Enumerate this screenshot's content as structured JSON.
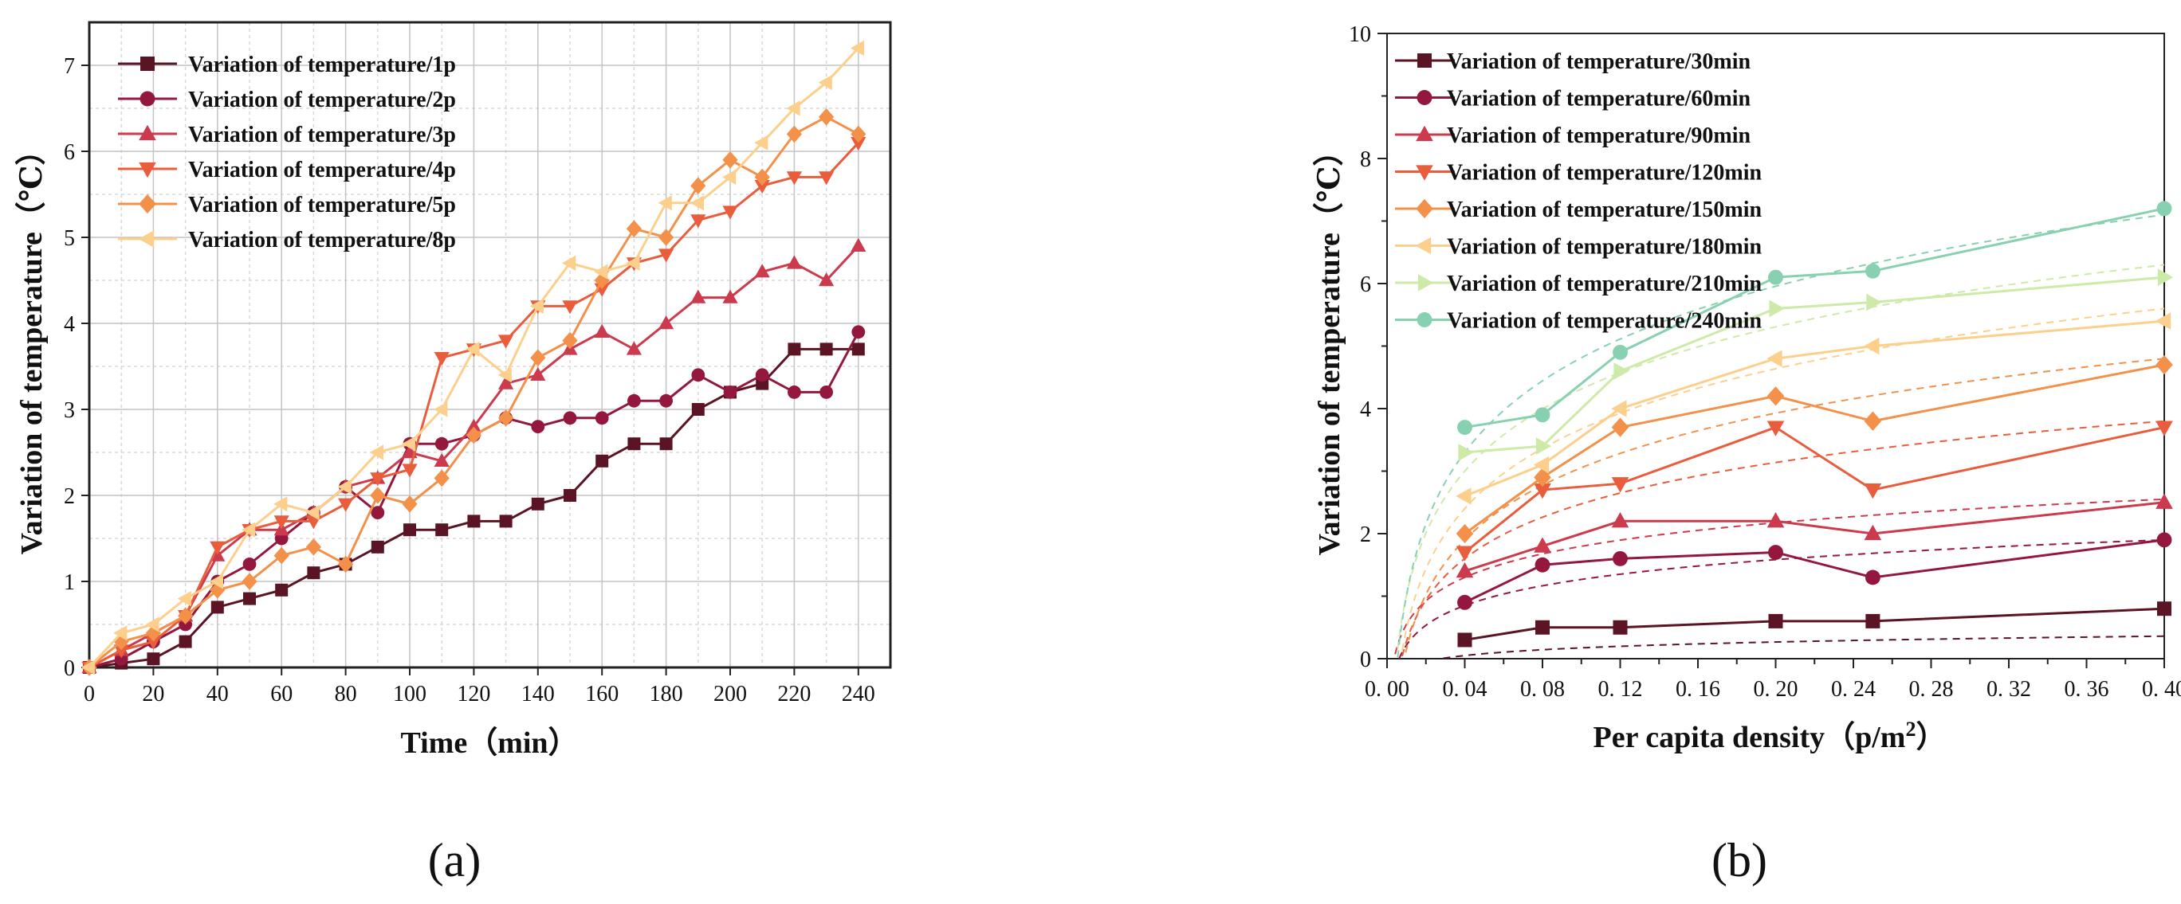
{
  "chart_data": [
    {
      "panel": "(a)",
      "type": "line",
      "xlabel": "Time（min）",
      "ylabel": "Variation of temperature（℃）",
      "xlim": [
        0,
        250
      ],
      "ylim": [
        0,
        7.5
      ],
      "xticks": [
        0,
        20,
        40,
        60,
        80,
        100,
        120,
        140,
        160,
        180,
        200,
        220,
        240
      ],
      "yticks": [
        0,
        1,
        2,
        3,
        4,
        5,
        6,
        7
      ],
      "grid": true,
      "legend_position": "top-left",
      "x": [
        0,
        10,
        20,
        30,
        40,
        50,
        60,
        70,
        80,
        90,
        100,
        110,
        120,
        130,
        140,
        150,
        160,
        170,
        180,
        190,
        200,
        210,
        220,
        230,
        240
      ],
      "series": [
        {
          "name": "Variation of temperature/1p",
          "color": "#5a1423",
          "marker": "square",
          "values": [
            0,
            0.05,
            0.1,
            0.3,
            0.7,
            0.8,
            0.9,
            1.1,
            1.2,
            1.4,
            1.6,
            1.6,
            1.7,
            1.7,
            1.9,
            2.0,
            2.4,
            2.6,
            2.6,
            3.0,
            3.2,
            3.3,
            3.7,
            3.7,
            3.7
          ]
        },
        {
          "name": "Variation of temperature/2p",
          "color": "#94183d",
          "marker": "circle",
          "values": [
            0,
            0.1,
            0.3,
            0.5,
            1.0,
            1.2,
            1.5,
            1.8,
            2.1,
            1.8,
            2.6,
            2.6,
            2.7,
            2.9,
            2.8,
            2.9,
            2.9,
            3.1,
            3.1,
            3.4,
            3.2,
            3.4,
            3.2,
            3.2,
            3.9
          ]
        },
        {
          "name": "Variation of temperature/3p",
          "color": "#cc3a4d",
          "marker": "triangle-up",
          "values": [
            0,
            0.2,
            0.4,
            0.6,
            1.3,
            1.6,
            1.6,
            1.8,
            2.1,
            2.2,
            2.5,
            2.4,
            2.8,
            3.3,
            3.4,
            3.7,
            3.9,
            3.7,
            4.0,
            4.3,
            4.3,
            4.6,
            4.7,
            4.5,
            4.9
          ]
        },
        {
          "name": "Variation of temperature/4p",
          "color": "#e95c3c",
          "marker": "triangle-down",
          "values": [
            0,
            0.2,
            0.3,
            0.6,
            1.4,
            1.6,
            1.7,
            1.7,
            1.9,
            2.2,
            2.3,
            3.6,
            3.7,
            3.8,
            4.2,
            4.2,
            4.4,
            4.7,
            4.8,
            5.2,
            5.3,
            5.6,
            5.7,
            5.7,
            6.1
          ]
        },
        {
          "name": "Variation of temperature/5p",
          "color": "#f3904a",
          "marker": "diamond",
          "values": [
            0,
            0.3,
            0.4,
            0.6,
            0.9,
            1.0,
            1.3,
            1.4,
            1.2,
            2.0,
            1.9,
            2.2,
            2.7,
            2.9,
            3.6,
            3.8,
            4.5,
            5.1,
            5.0,
            5.6,
            5.9,
            5.7,
            6.2,
            6.4,
            6.2
          ]
        },
        {
          "name": "Variation of temperature/8p",
          "color": "#fcd08c",
          "marker": "triangle-left",
          "values": [
            0,
            0.4,
            0.5,
            0.8,
            1.0,
            1.6,
            1.9,
            1.8,
            2.1,
            2.5,
            2.6,
            3.0,
            3.7,
            3.4,
            4.2,
            4.7,
            4.6,
            4.7,
            5.4,
            5.4,
            5.7,
            6.1,
            6.5,
            6.8,
            7.2
          ]
        }
      ]
    },
    {
      "panel": "(b)",
      "type": "line",
      "xlabel_main": "Per capita density（p/m",
      "xlabel_sup": "2",
      "xlabel_end": "）",
      "ylabel": "Variation of temperature（℃）",
      "xlim": [
        0,
        0.4
      ],
      "ylim": [
        0,
        10
      ],
      "xticks": [
        "0. 00",
        "0. 04",
        "0. 08",
        "0. 12",
        "0. 16",
        "0. 20",
        "0. 24",
        "0. 28",
        "0. 32",
        "0. 36",
        "0. 40"
      ],
      "xtick_values": [
        0,
        0.04,
        0.08,
        0.12,
        0.16,
        0.2,
        0.24,
        0.28,
        0.32,
        0.36,
        0.4
      ],
      "yticks": [
        0,
        2,
        4,
        6,
        8,
        10
      ],
      "grid": false,
      "legend_position": "top-left",
      "fit_lines": "dashed logarithmic trend per series",
      "x": [
        0.04,
        0.08,
        0.12,
        0.2,
        0.25,
        0.4
      ],
      "series": [
        {
          "name": "Variation of temperature/30min",
          "color": "#5a1423",
          "marker": "square",
          "values": [
            0.3,
            0.5,
            0.5,
            0.6,
            0.6,
            0.8
          ],
          "fit": [
            0.05,
            0.36
          ]
        },
        {
          "name": "Variation of temperature/60min",
          "color": "#94183d",
          "marker": "circle",
          "values": [
            0.9,
            1.5,
            1.6,
            1.7,
            1.3,
            1.9
          ],
          "fit": [
            0.85,
            1.9
          ]
        },
        {
          "name": "Variation of temperature/90min",
          "color": "#cc3a4d",
          "marker": "triangle-up",
          "values": [
            1.4,
            1.8,
            2.2,
            2.2,
            2.0,
            2.5
          ],
          "fit": [
            1.3,
            2.55
          ]
        },
        {
          "name": "Variation of temperature/120min",
          "color": "#e95c3c",
          "marker": "triangle-down",
          "values": [
            1.7,
            2.7,
            2.8,
            3.7,
            2.7,
            3.7
          ],
          "fit": [
            1.6,
            3.8
          ]
        },
        {
          "name": "Variation of temperature/150min",
          "color": "#f3904a",
          "marker": "diamond",
          "values": [
            2.0,
            2.9,
            3.7,
            4.2,
            3.8,
            4.7
          ],
          "fit": [
            1.9,
            4.8
          ]
        },
        {
          "name": "Variation of temperature/180min",
          "color": "#fcd08c",
          "marker": "triangle-left",
          "values": [
            2.6,
            3.1,
            4.0,
            4.8,
            5.0,
            5.4
          ],
          "fit": [
            2.4,
            5.6
          ]
        },
        {
          "name": "Variation of temperature/210min",
          "color": "#cdeaa8",
          "marker": "triangle-right",
          "values": [
            3.3,
            3.4,
            4.6,
            5.6,
            5.7,
            6.1
          ],
          "fit": [
            3.0,
            6.3
          ]
        },
        {
          "name": "Variation of temperature/240min",
          "color": "#88d1b0",
          "marker": "circle",
          "values": [
            3.7,
            3.9,
            4.9,
            6.1,
            6.2,
            7.2
          ],
          "fit": [
            3.3,
            7.1
          ]
        }
      ]
    }
  ]
}
